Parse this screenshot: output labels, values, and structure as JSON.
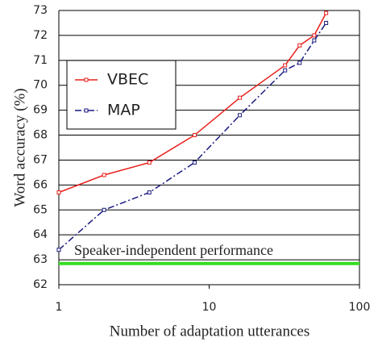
{
  "chart_data": {
    "type": "line",
    "xlabel": "Number of adaptation utterances",
    "ylabel": "Word accuracy (%)",
    "x": [
      1,
      2,
      4,
      8,
      16,
      32,
      40,
      50,
      60
    ],
    "series": [
      {
        "name": "VBEC",
        "color": "#e8201c",
        "dash": "solid",
        "values": [
          65.7,
          66.4,
          66.9,
          68.0,
          69.5,
          70.8,
          71.6,
          72.0,
          72.9
        ]
      },
      {
        "name": "MAP",
        "color": "#1a1a80",
        "dash": "dashdot",
        "values": [
          63.4,
          65.0,
          65.7,
          66.9,
          68.8,
          70.6,
          70.9,
          71.8,
          72.5
        ]
      }
    ],
    "reference_line": {
      "value": 62.85,
      "label": "Speaker-independent performance",
      "color": "#33dd22"
    },
    "xlog": true,
    "xlim": [
      1,
      100
    ],
    "xticks": [
      1,
      10,
      100
    ],
    "ylim": [
      62,
      73
    ],
    "yticks": [
      62,
      63,
      64,
      65,
      66,
      67,
      68,
      69,
      70,
      71,
      72,
      73
    ],
    "grid": true,
    "legend": "upper left"
  }
}
